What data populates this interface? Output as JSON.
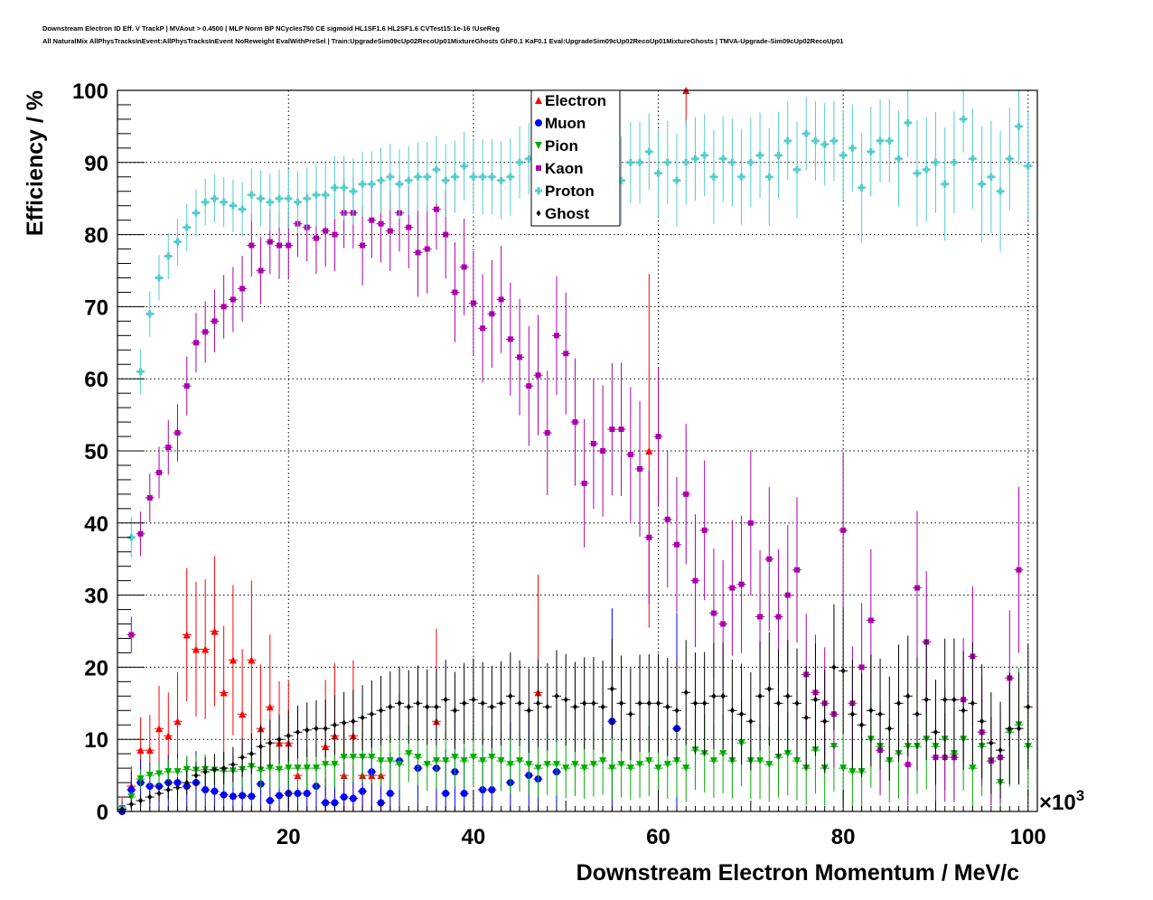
{
  "chart_data": {
    "type": "scatter",
    "title_line1": "Downstream Electron ID Eff. V TrackP | MVAout > 0.4500 | MLP Norm BP NCycles750 CE sigmoid HL1SF1.6 HL2SF1.6 CVTest15:1e-16 !UseReg",
    "title_line2": "All NaturalMix AllPhysTracksInEvent:AllPhysTracksInEvent NoReweight EvalWithPreSel | Train:UpgradeSim09cUp02RecoUp01MixtureGhosts GhF0.1 KaF0.1 Eval:UpgradeSim09cUp02RecoUp01MixtureGhosts | TMVA-Upgrade-Sim09cUp02RecoUp01",
    "xlabel": "Downstream Electron Momentum / MeV/c",
    "ylabel": "Efficiency / %",
    "x_multiplier": "×10",
    "x_multiplier_exp": "3",
    "xlim": [
      1.5,
      101
    ],
    "ylim": [
      0,
      100
    ],
    "xticks": [
      "20",
      "40",
      "60",
      "80",
      "100"
    ],
    "yticks": [
      "0",
      "10",
      "20",
      "30",
      "40",
      "50",
      "60",
      "70",
      "80",
      "90",
      "100"
    ],
    "grid": true,
    "legend_position": "top-center",
    "x_start": 2,
    "series": [
      {
        "name": "Electron",
        "color": "#ff0000",
        "marker": "triangle-up",
        "values": [
          0.5,
          3.5,
          8.5,
          8.5,
          11.5,
          10.5,
          12.5,
          24.5,
          22.5,
          22.5,
          25,
          16.5,
          21,
          13.5,
          21,
          11.5,
          14.5,
          9.5,
          9.5,
          5,
          null,
          null,
          9,
          10.5,
          5,
          10.5,
          5,
          5,
          5,
          null,
          null,
          null,
          null,
          null,
          12.5,
          null,
          null,
          null,
          null,
          null,
          null,
          null,
          null,
          null,
          null,
          16.5,
          null,
          null,
          null,
          null,
          null,
          null,
          null,
          null,
          null,
          null,
          null,
          50,
          null,
          null,
          null,
          100
        ]
      },
      {
        "name": "Muon",
        "color": "#0000ff",
        "marker": "circle",
        "values": [
          0,
          3,
          4,
          3.5,
          3.5,
          4,
          4,
          3.5,
          4,
          3,
          2.8,
          2.3,
          2.1,
          2.2,
          2.1,
          3.8,
          1.5,
          2.2,
          2.5,
          2.5,
          2.5,
          3.5,
          1.2,
          1.2,
          2,
          1.8,
          2.8,
          5.5,
          1.2,
          2.5,
          7,
          null,
          6,
          null,
          6,
          2.5,
          5.5,
          2.5,
          null,
          3,
          3,
          null,
          4,
          null,
          5,
          4.5,
          null,
          5.5,
          null,
          null,
          null,
          null,
          null,
          12.5,
          null,
          null,
          null,
          null,
          null,
          null,
          11.5
        ]
      },
      {
        "name": "Pion",
        "color": "#00aa00",
        "marker": "triangle-down",
        "values": [
          0.3,
          2,
          4.5,
          5,
          5.2,
          5.5,
          5.5,
          5.8,
          5.7,
          5.8,
          5.7,
          5.6,
          5.6,
          5.8,
          6.2,
          5.7,
          6,
          5.8,
          6,
          6,
          6,
          6,
          6.5,
          6.5,
          7.5,
          7.5,
          7.5,
          7.5,
          7,
          7,
          6.5,
          8,
          7.5,
          6.5,
          7,
          7,
          7.5,
          7,
          7.5,
          7,
          7.5,
          7,
          6.5,
          7,
          6.5,
          6,
          6.5,
          6.5,
          6,
          6.5,
          6,
          6.5,
          7,
          6,
          6.5,
          6,
          6.5,
          7,
          6,
          6.5,
          7,
          6,
          8.5,
          8,
          7,
          8,
          7,
          9.5,
          7,
          7,
          6.5,
          7.5,
          8,
          7,
          6,
          8.5,
          6,
          9,
          6,
          5.5,
          5.5,
          10,
          9,
          7,
          8,
          9,
          9,
          10,
          9,
          10,
          8,
          10,
          6,
          9,
          7,
          4,
          11,
          12,
          9
        ]
      },
      {
        "name": "Kaon",
        "color": "#aa00aa",
        "marker": "square",
        "values": [
          0.5,
          24.5,
          38.5,
          43.5,
          47,
          50.5,
          52.5,
          59,
          65,
          66.5,
          68,
          70,
          71,
          72.5,
          78.5,
          75,
          79,
          78.5,
          78.5,
          81.5,
          81,
          79.5,
          80.5,
          80,
          83,
          83,
          78.5,
          82,
          81.5,
          80.5,
          83,
          81,
          77.5,
          78,
          83.5,
          80,
          72,
          75.5,
          70.5,
          67,
          69,
          71,
          65.5,
          63,
          59,
          60.5,
          52.5,
          66,
          63.5,
          54,
          45.5,
          51,
          50,
          53,
          53,
          49.5,
          47.5,
          38,
          52,
          40.5,
          37,
          44,
          32,
          39,
          27.5,
          26,
          31,
          31.5,
          40,
          27,
          35,
          27,
          30,
          33.5,
          19,
          16.5,
          15,
          13.5,
          39,
          15,
          20,
          26.5,
          8.5,
          null,
          null,
          6.5,
          31,
          23.5,
          7.5,
          7.5,
          7.5,
          15.5,
          21.5,
          11,
          7,
          7.5,
          18.5,
          33.5,
          null
        ]
      },
      {
        "name": "Proton",
        "color": "#55cccc",
        "marker": "cross",
        "values": [
          0.5,
          38,
          61,
          69,
          74,
          77,
          79,
          81,
          83,
          84.5,
          85,
          84.5,
          84,
          83.5,
          85.5,
          85,
          84.5,
          85,
          85,
          84.5,
          85,
          85.5,
          85.5,
          86.5,
          86.5,
          86,
          87,
          87,
          87.5,
          88,
          87,
          87.5,
          88,
          88,
          89,
          87.5,
          88,
          89.5,
          88,
          88,
          88,
          87.5,
          88,
          90,
          90.5,
          90,
          91,
          90,
          92,
          91,
          90,
          91,
          91,
          89,
          87.5,
          90,
          90,
          91.5,
          88.5,
          90,
          87.5,
          90,
          90.5,
          91,
          88,
          90.5,
          90,
          88,
          90,
          91,
          88,
          91,
          93,
          89,
          94,
          93,
          92.5,
          93,
          91,
          92,
          86.5,
          91.5,
          93,
          93,
          90.5,
          95.5,
          88.5,
          89,
          90,
          87,
          90,
          96,
          90.5,
          87,
          88,
          86,
          90.5,
          95,
          89.5
        ]
      },
      {
        "name": "Ghost",
        "color": "#000000",
        "marker": "diamond",
        "values": [
          0.3,
          1,
          1.5,
          2,
          2.5,
          3,
          3.3,
          4,
          5,
          5.5,
          5.8,
          6,
          6.5,
          7.5,
          8,
          9,
          9.5,
          10,
          10.5,
          11,
          11.3,
          11.5,
          11.5,
          12,
          12.3,
          12.5,
          13,
          13.5,
          14,
          14.5,
          15,
          14.5,
          15,
          14.5,
          14.5,
          15.5,
          14,
          15,
          15.5,
          15,
          14.5,
          15,
          16,
          15,
          14,
          15,
          14.5,
          16,
          15.5,
          14.5,
          15,
          15,
          14.5,
          17,
          15,
          13.5,
          15,
          15,
          15,
          14.5,
          14,
          16.5,
          15,
          15,
          16,
          16,
          14,
          13.5,
          12.5,
          16,
          17,
          15,
          16,
          15,
          13,
          15.5,
          12.5,
          20,
          19.5,
          13.5,
          12,
          14,
          13.5,
          11.5,
          15,
          16,
          13.5,
          15.5,
          11,
          15.5,
          15.5,
          14,
          15,
          12.5,
          9.5,
          8.5,
          11.5,
          11.5,
          14.5
        ]
      }
    ]
  }
}
